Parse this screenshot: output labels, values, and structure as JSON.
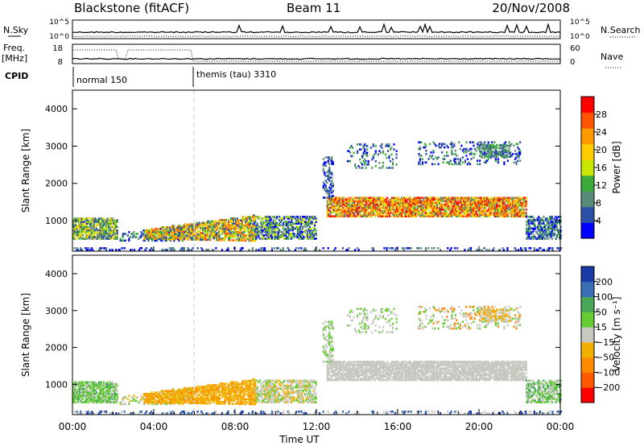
{
  "header": {
    "station": "Blackstone (fitACF)",
    "beam": "Beam 11",
    "date": "20/Nov/2008"
  },
  "colors": {
    "power_scale": [
      "#0000ff",
      "#2b50a8",
      "#5a8a78",
      "#3aaa3a",
      "#c8e600",
      "#ffcc00",
      "#ff9900",
      "#ff5500",
      "#ff0000"
    ],
    "velocity_scale": [
      "#ff0000",
      "#ff5a00",
      "#ff8a00",
      "#f2b000",
      "#c8c8c0",
      "#66cc33",
      "#4aa85a",
      "#3a6fb8",
      "#1a3aa8"
    ],
    "ground_scatter": "#c8c8c0"
  },
  "chart_data": [
    {
      "type": "line",
      "panel": "nsky-nsearch",
      "left_label": "N.Sky",
      "right_label": "N.Search",
      "left_ticks": [
        "10^5",
        "10^0"
      ],
      "right_ticks": [
        "10^5",
        "10^0"
      ]
    },
    {
      "type": "line",
      "panel": "freq-nave",
      "left_label_line1": "Freq.",
      "left_label_line2": "[MHz]",
      "right_label": "Nave",
      "left_ticks": [
        18,
        8
      ],
      "right_ticks": [
        60,
        0
      ]
    },
    {
      "type": "table",
      "panel": "cpid",
      "label": "CPID",
      "modes": [
        {
          "name": "normal 150",
          "start_hour": 0,
          "end_hour": 6.0
        },
        {
          "name": "themis (tau) 3310",
          "start_hour": 6.0,
          "end_hour": 24
        }
      ]
    },
    {
      "type": "heatmap",
      "panel": "power",
      "ylabel": "Slant Range [km]",
      "ylim": [
        180,
        4500
      ],
      "yticks": [
        1000,
        2000,
        3000,
        4000
      ],
      "xlim": [
        0,
        24
      ],
      "colorbar_label": "Power [dB]",
      "colorbar_ticks": [
        4,
        8,
        12,
        16,
        20,
        24,
        28
      ],
      "colorbar_range": [
        0,
        32
      ]
    },
    {
      "type": "heatmap",
      "panel": "velocity",
      "ylabel": "Slant Range [km]",
      "ylim": [
        180,
        4500
      ],
      "yticks": [
        1000,
        2000,
        3000,
        4000
      ],
      "xlim": [
        0,
        24
      ],
      "xlabel": "Time UT",
      "xtick_labels": [
        "00:00",
        "04:00",
        "08:00",
        "12:00",
        "16:00",
        "20:00",
        "00:00"
      ],
      "colorbar_label": "Velocity [m s⁻¹]",
      "colorbar_ticks": [
        "200",
        "100",
        "50",
        "15",
        "−15",
        "−50",
        "−100",
        "−200"
      ]
    }
  ]
}
